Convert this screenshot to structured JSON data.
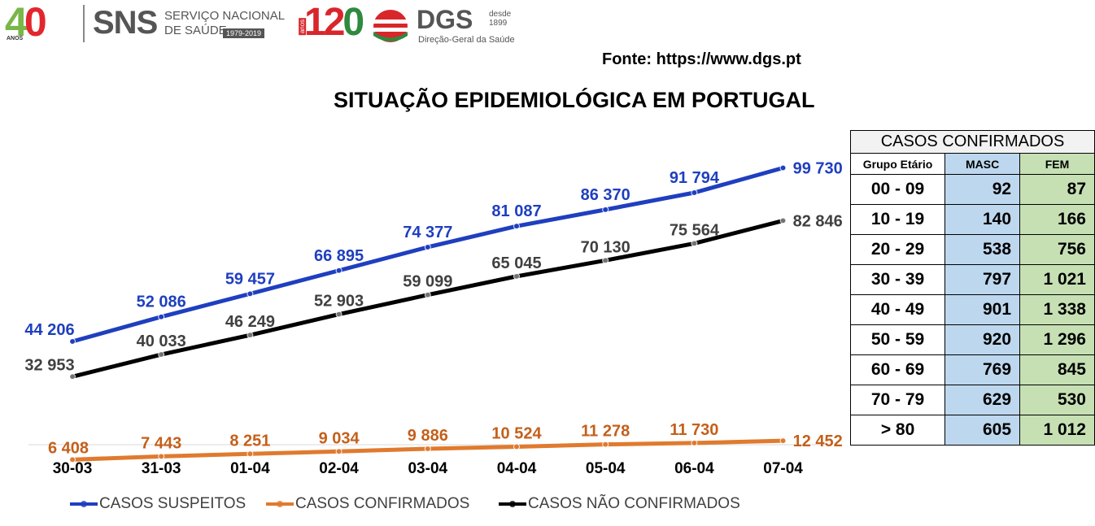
{
  "header": {
    "logo40": {
      "four": "4",
      "zero": "0",
      "anos": "ANOS"
    },
    "sns": {
      "name": "SNS",
      "line1": "SERVIÇO NACIONAL",
      "line2": "DE SAÚDE",
      "years": "1979-2019"
    },
    "logo120": {
      "number_1": "1",
      "number_2": "2",
      "number_3": "0",
      "anos": "anos"
    },
    "dgs": {
      "name": "DGS",
      "since_label": "desde",
      "since_year": "1899",
      "full_name": "Direção-Geral da Saúde"
    },
    "source": "Fonte: https://www.dgs.pt",
    "title": "SITUAÇÃO EPIDEMIOLÓGICA EM PORTUGAL"
  },
  "colors": {
    "suspeitos": "#1f3fbf",
    "confirmados": "#e07a2e",
    "nao_confirmados": "#000000",
    "masc_bg": "#bdd7ee",
    "fem_bg": "#c6e0b4"
  },
  "chart_data": {
    "type": "line",
    "categories": [
      "30-03",
      "31-03",
      "01-04",
      "02-04",
      "03-04",
      "04-04",
      "05-04",
      "06-04",
      "07-04"
    ],
    "series": [
      {
        "name": "CASOS SUSPEITOS",
        "values": [
          44206,
          52086,
          59457,
          66895,
          74377,
          81087,
          86370,
          91794,
          99730
        ],
        "labels": [
          "44 206",
          "52 086",
          "59 457",
          "66 895",
          "74 377",
          "81 087",
          "86 370",
          "91 794",
          "99 730"
        ]
      },
      {
        "name": "CASOS CONFIRMADOS",
        "values": [
          6408,
          7443,
          8251,
          9034,
          9886,
          10524,
          11278,
          11730,
          12452
        ],
        "labels": [
          "6 408",
          "7 443",
          "8 251",
          "9 034",
          "9 886",
          "10 524",
          "11 278",
          "11 730",
          "12 452"
        ]
      },
      {
        "name": "CASOS NÃO CONFIRMADOS",
        "values": [
          32953,
          40033,
          46249,
          52903,
          59099,
          65045,
          70130,
          75564,
          82846
        ],
        "labels": [
          "32 953",
          "40 033",
          "46 249",
          "52 903",
          "59 099",
          "65 045",
          "70 130",
          "75 564",
          "82 846"
        ]
      }
    ],
    "ylim": [
      0,
      110000
    ],
    "grid": false,
    "legend": "bottom"
  },
  "table": {
    "title": "CASOS CONFIRMADOS",
    "columns": [
      "Grupo Etário",
      "MASC",
      "FEM"
    ],
    "rows": [
      {
        "group": "00 - 09",
        "masc": "92",
        "fem": "87"
      },
      {
        "group": "10 - 19",
        "masc": "140",
        "fem": "166"
      },
      {
        "group": "20 - 29",
        "masc": "538",
        "fem": "756"
      },
      {
        "group": "30 - 39",
        "masc": "797",
        "fem": "1 021"
      },
      {
        "group": "40 - 49",
        "masc": "901",
        "fem": "1 338"
      },
      {
        "group": "50 - 59",
        "masc": "920",
        "fem": "1 296"
      },
      {
        "group": "60 - 69",
        "masc": "769",
        "fem": "845"
      },
      {
        "group": "70 - 79",
        "masc": "629",
        "fem": "530"
      },
      {
        "group": "> 80",
        "masc": "605",
        "fem": "1 012"
      }
    ]
  }
}
